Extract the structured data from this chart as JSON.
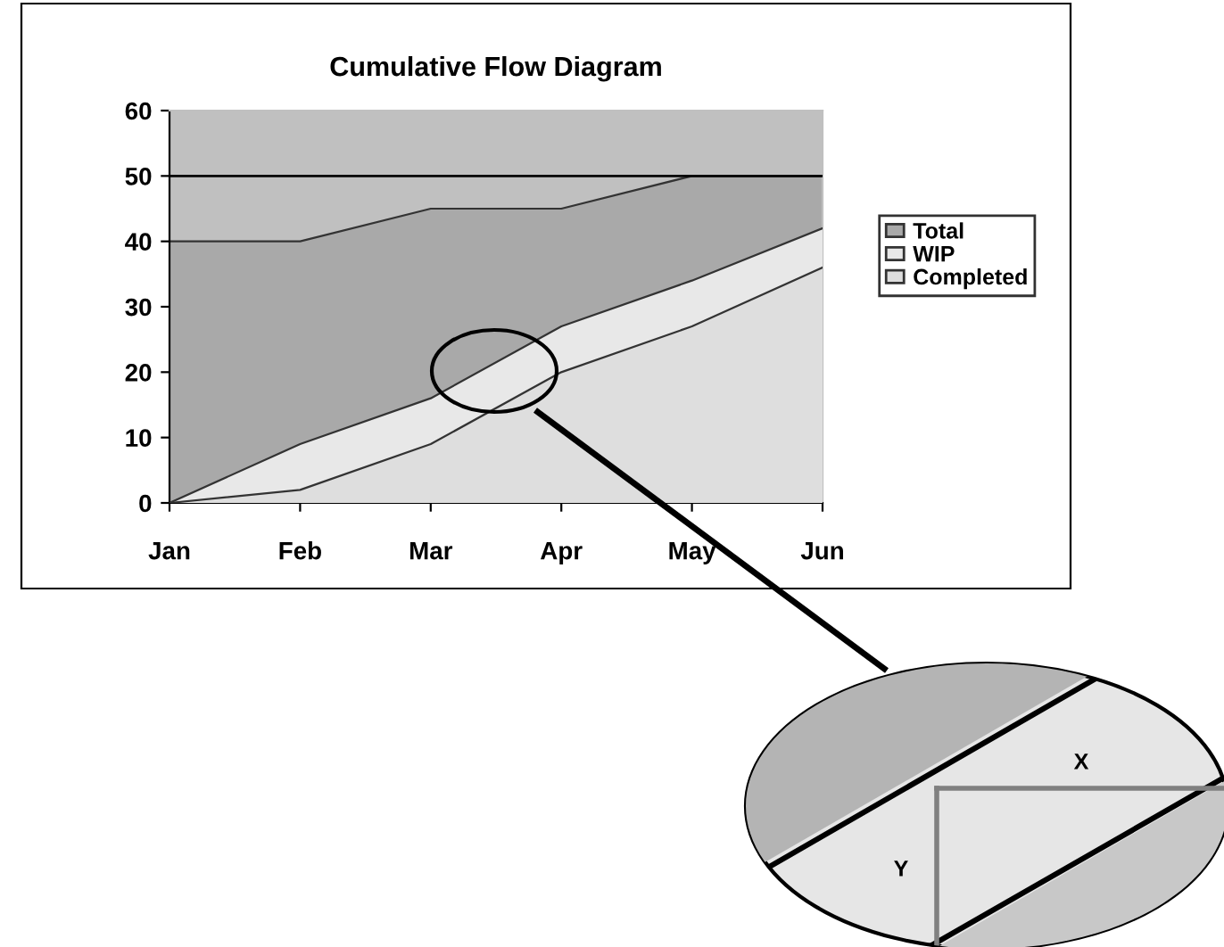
{
  "chart_data": {
    "type": "area",
    "title": "Cumulative Flow Diagram",
    "categories": [
      "Jan",
      "Feb",
      "Mar",
      "Apr",
      "May",
      "Jun"
    ],
    "series": [
      {
        "name": "Total",
        "color": "#a9a9a9",
        "values": [
          40,
          40,
          45,
          45,
          50,
          50
        ]
      },
      {
        "name": "WIP",
        "color": "#e8e8e8",
        "values": [
          0,
          9,
          16,
          27,
          34,
          42
        ]
      },
      {
        "name": "Completed",
        "color": "#dedede",
        "values": [
          0,
          2,
          9,
          20,
          27,
          36
        ]
      }
    ],
    "ylim": [
      0,
      60
    ],
    "yticks": [
      0,
      10,
      20,
      30,
      40,
      50,
      60
    ],
    "ref_lines": [
      {
        "axis": "y",
        "value": 50,
        "color": "#000000"
      }
    ],
    "legend": "right",
    "annotations": [
      "X",
      "Y"
    ]
  }
}
